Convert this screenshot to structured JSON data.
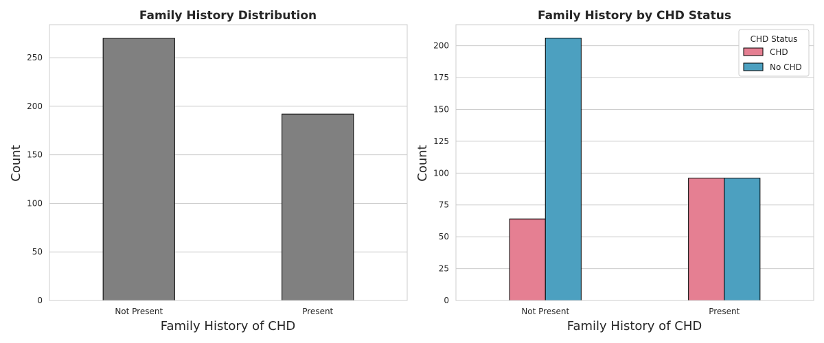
{
  "chart_data": [
    {
      "type": "bar",
      "title": "Family History Distribution",
      "xlabel": "Family History of CHD",
      "ylabel": "Count",
      "categories": [
        "Not Present",
        "Present"
      ],
      "values": [
        270,
        192
      ],
      "ylim": [
        0,
        284
      ],
      "yticks": [
        0,
        50,
        100,
        150,
        200,
        250
      ],
      "grid": true,
      "colors": {
        "bar": "#808080",
        "edge": "#000000",
        "grid": "#cccccc",
        "spine": "#cccccc"
      }
    },
    {
      "type": "bar",
      "title": "Family History by CHD Status",
      "xlabel": "Family History of CHD",
      "ylabel": "Count",
      "categories": [
        "Not Present",
        "Present"
      ],
      "series": [
        {
          "name": "CHD",
          "values": [
            64,
            96
          ],
          "color": "#e57f92"
        },
        {
          "name": "No CHD",
          "values": [
            206,
            96
          ],
          "color": "#4ca0c0"
        }
      ],
      "ylim": [
        0,
        216.5
      ],
      "yticks": [
        0,
        25,
        50,
        75,
        100,
        125,
        150,
        175,
        200
      ],
      "grid": true,
      "legend": {
        "title": "CHD Status",
        "placement": "top-right"
      },
      "colors": {
        "edge": "#000000",
        "grid": "#cccccc",
        "spine": "#cccccc"
      }
    }
  ]
}
